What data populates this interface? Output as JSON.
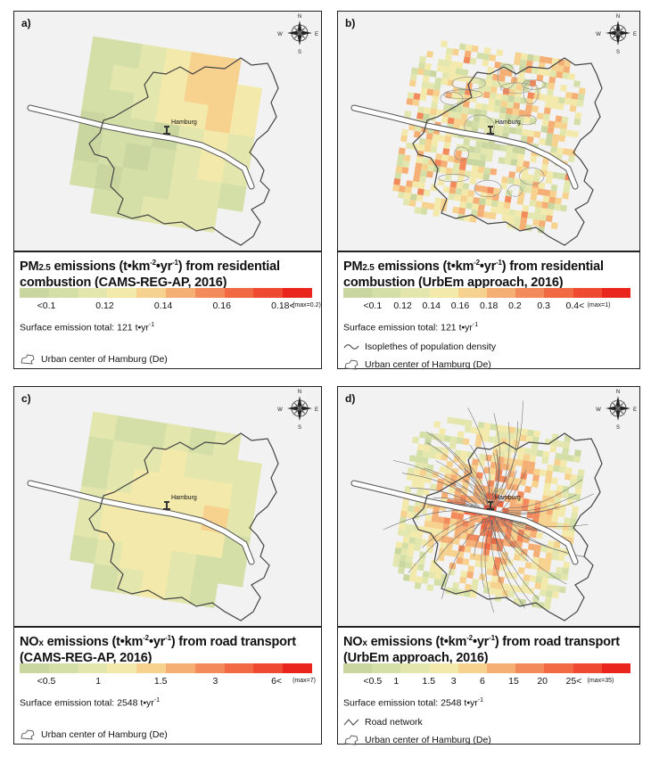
{
  "panels": [
    {
      "id": "a",
      "label": "a)",
      "city_label": "Hamburg",
      "title_line1_pre": "PM",
      "title_line1_sub": "2.5",
      "title_line1_mid": " emissions (t",
      "title_line1_unit": "km",
      "title_line1_post": " from residential",
      "title_line2": "combustion (CAMS-REG-AP, 2016)",
      "colors": [
        "#c9d6a0",
        "#d4dfa8",
        "#e3e7ad",
        "#f2e9ab",
        "#f7d18e",
        "#f5ae74",
        "#f38a5b",
        "#f26a44",
        "#ef4a31",
        "#e9251e"
      ],
      "ticks": [
        "<0.1",
        "0.12",
        "0.14",
        "0.16",
        "0.18<"
      ],
      "max_label": "(max=0.2)",
      "surface_text": "Surface emission total: 121 t",
      "surface_unit": "yr",
      "extra_legend": "",
      "urban_label": "Urban center of Hamburg (De)"
    },
    {
      "id": "b",
      "label": "b)",
      "city_label": "Hamburg",
      "title_line1_pre": "PM",
      "title_line1_sub": "2.5",
      "title_line1_mid": " emissions (t",
      "title_line1_unit": "km",
      "title_line1_post": " from residential",
      "title_line2": "combustion (UrbEm approach, 2016)",
      "colors": [
        "#c9d6a0",
        "#d4dfa8",
        "#e3e7ad",
        "#f2e9ab",
        "#f7d18e",
        "#f5ae74",
        "#f38a5b",
        "#f26a44",
        "#ef4a31",
        "#e9251e"
      ],
      "ticks": [
        "<0.1",
        "0.12",
        "0.14",
        "0.16",
        "0.18",
        "0.2",
        "0.3",
        "0.4<"
      ],
      "max_label": "(max=1)",
      "surface_text": "Surface emission total: 121 t",
      "surface_unit": "yr",
      "extra_legend": "Isoplethes of population density",
      "urban_label": "Urban center of Hamburg (De)"
    },
    {
      "id": "c",
      "label": "c)",
      "city_label": "Hamburg",
      "title_line1_pre": "NO",
      "title_line1_sub": "x",
      "title_line1_mid": " emissions (t",
      "title_line1_unit": "km",
      "title_line1_post": " from road transport",
      "title_line2": "(CAMS-REG-AP, 2016)",
      "colors": [
        "#c9d6a0",
        "#d4dfa8",
        "#e3e7ad",
        "#f2e9ab",
        "#f7d18e",
        "#f5ae74",
        "#f38a5b",
        "#f26a44",
        "#ef4a31",
        "#e9251e"
      ],
      "ticks": [
        "<0.5",
        "1",
        "1.5",
        "3",
        "6<"
      ],
      "max_label": "(max=7)",
      "surface_text": "Surface emission total: 2548 t",
      "surface_unit": "yr",
      "extra_legend": "",
      "urban_label": "Urban center of Hamburg (De)"
    },
    {
      "id": "d",
      "label": "d)",
      "city_label": "Hamburg",
      "title_line1_pre": "NO",
      "title_line1_sub": "x",
      "title_line1_mid": " emissions (t",
      "title_line1_unit": "km",
      "title_line1_post": " from road transport",
      "title_line2": "(UrbEm approach, 2016)",
      "colors": [
        "#c9d6a0",
        "#d4dfa8",
        "#e3e7ad",
        "#f2e9ab",
        "#f7d18e",
        "#f5ae74",
        "#f38a5b",
        "#f26a44",
        "#ef4a31",
        "#e9251e"
      ],
      "ticks": [
        "<0.5",
        "1",
        "1.5",
        "3",
        "6",
        "15",
        "20",
        "25<"
      ],
      "max_label": "(max=35)",
      "surface_text": "Surface emission total: 2548 t",
      "surface_unit": "yr",
      "extra_legend": "Road network",
      "urban_label": "Urban center of Hamburg (De)"
    }
  ],
  "compass": {
    "n": "N",
    "s": "S",
    "e": "E",
    "w": "W"
  },
  "map_style": {
    "background": "#f2f2f2",
    "boundary_color": "#444444",
    "river_color": "#ffffff",
    "road_color": "#6b6b6b"
  },
  "icons": {
    "city_marker": "pushpin-icon",
    "compass": "compass-rose-icon",
    "urban_legend": "urban-outline-icon",
    "isopleth_legend": "wavy-line-icon",
    "road_legend": "zigzag-line-icon"
  }
}
